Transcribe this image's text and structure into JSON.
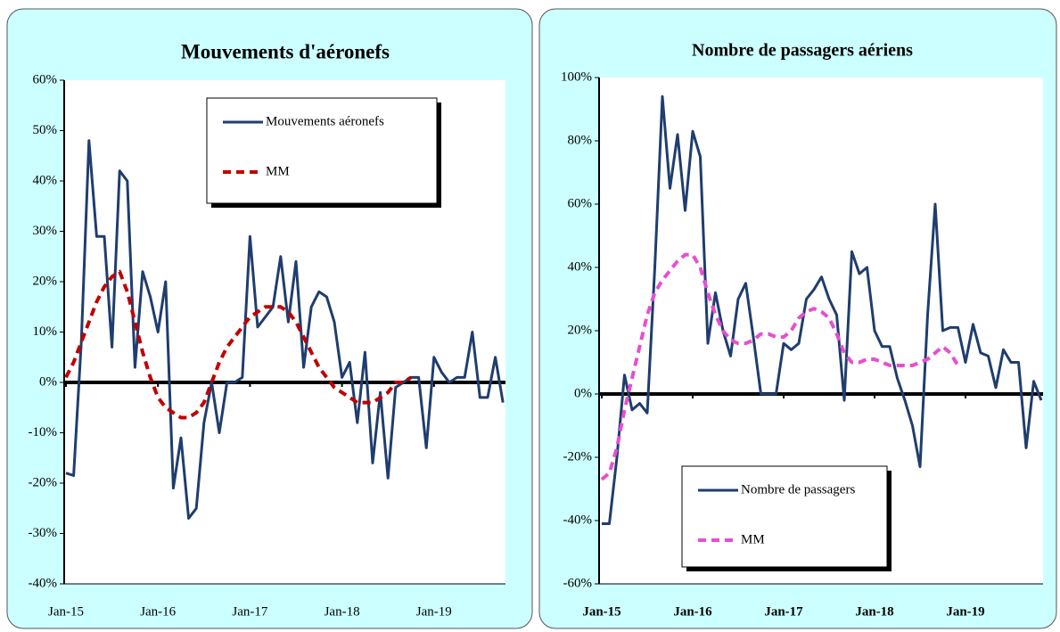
{
  "chart_data": [
    {
      "type": "line",
      "title": "Mouvements d'aéronefs",
      "categories": [
        "Jan-15",
        null,
        null,
        null,
        null,
        null,
        null,
        null,
        null,
        null,
        null,
        null,
        "Jan-16",
        null,
        null,
        null,
        null,
        null,
        null,
        null,
        null,
        null,
        null,
        null,
        "Jan-17",
        null,
        null,
        null,
        null,
        null,
        null,
        null,
        null,
        null,
        null,
        null,
        "Jan-18",
        null,
        null,
        null,
        null,
        null,
        null,
        null,
        null,
        null,
        null,
        null,
        "Jan-19",
        null,
        null,
        null,
        null,
        null,
        null,
        null,
        null,
        null
      ],
      "series": [
        {
          "name": "Mouvements  aéronefs",
          "color": "#1f3d6e",
          "style": "solid",
          "values": [
            -18,
            -18.5,
            8,
            48,
            29,
            29,
            7,
            42,
            40,
            3,
            22,
            17,
            10,
            20,
            -21,
            -11,
            -27,
            -25,
            -8,
            0,
            -10,
            0,
            0,
            1,
            29,
            11,
            13,
            15,
            25,
            12,
            24,
            3,
            15,
            18,
            17,
            12,
            1,
            4,
            -8,
            6,
            -16,
            -2,
            -19,
            -1,
            0,
            1,
            1,
            -13,
            5,
            2,
            0,
            1,
            1,
            10,
            -3,
            -3,
            5,
            -4
          ]
        },
        {
          "name": "MM",
          "color": "#c00000",
          "style": "dashed",
          "values": [
            1,
            4,
            8,
            12,
            16,
            19,
            21,
            22,
            18,
            12,
            6,
            1,
            -3,
            -5,
            -6,
            -7,
            -7,
            -6,
            -4,
            0,
            4,
            7,
            9,
            11,
            13,
            14,
            15,
            15,
            15,
            14,
            12,
            9,
            6,
            3,
            1,
            -1,
            -2,
            -3,
            -4,
            -4,
            -4,
            -3,
            -2,
            0,
            0,
            1,
            null,
            null,
            null,
            null,
            null,
            null,
            null,
            null,
            null,
            null,
            null,
            null
          ]
        }
      ],
      "ylim": [
        -40,
        60
      ],
      "yticks": [
        {
          "value": -40,
          "label": "-40%"
        },
        {
          "value": -30,
          "label": "-30%"
        },
        {
          "value": -20,
          "label": "-20%"
        },
        {
          "value": -10,
          "label": "-10%"
        },
        {
          "value": 0,
          "label": "0%"
        },
        {
          "value": 10,
          "label": "10%"
        },
        {
          "value": 20,
          "label": "20%"
        },
        {
          "value": 30,
          "label": "30%"
        },
        {
          "value": 40,
          "label": "40%"
        },
        {
          "value": 50,
          "label": "50%"
        },
        {
          "value": 60,
          "label": "60%"
        }
      ],
      "legend": "upper right"
    },
    {
      "type": "line",
      "title": "Nombre de passagers aériens",
      "categories": [
        "Jan-15",
        null,
        null,
        null,
        null,
        null,
        null,
        null,
        null,
        null,
        null,
        null,
        "Jan-16",
        null,
        null,
        null,
        null,
        null,
        null,
        null,
        null,
        null,
        null,
        null,
        "Jan-17",
        null,
        null,
        null,
        null,
        null,
        null,
        null,
        null,
        null,
        null,
        null,
        "Jan-18",
        null,
        null,
        null,
        null,
        null,
        null,
        null,
        null,
        null,
        null,
        null,
        "Jan-19",
        null,
        null,
        null,
        null,
        null,
        null,
        null,
        null,
        null,
        null
      ],
      "series": [
        {
          "name": "Nombre de passagers",
          "color": "#1f3d6e",
          "style": "solid",
          "values": [
            -41,
            -41,
            -20,
            6,
            -5,
            -3,
            -6,
            40,
            94,
            65,
            82,
            58,
            83,
            75,
            16,
            32,
            20,
            12,
            30,
            35,
            18,
            0,
            0,
            0,
            16,
            14,
            16,
            30,
            33,
            37,
            30,
            25,
            -2,
            45,
            38,
            40,
            20,
            15,
            15,
            5,
            -2,
            -10,
            -23,
            25,
            60,
            20,
            21,
            21,
            10,
            22,
            13,
            12,
            2,
            14,
            10,
            10,
            -17,
            4,
            -2
          ]
        },
        {
          "name": "MM",
          "color": "#e64fd0",
          "style": "dashed",
          "values": [
            -27,
            -25,
            -17,
            -5,
            5,
            15,
            25,
            32,
            36,
            39,
            42,
            44,
            44,
            40,
            32,
            25,
            20,
            17,
            16,
            16,
            17,
            19,
            19,
            18,
            18,
            20,
            24,
            26,
            27,
            26,
            24,
            19,
            13,
            10,
            10,
            11,
            11,
            10,
            9,
            9,
            9,
            9,
            10,
            11,
            13,
            15,
            13,
            9,
            null,
            null,
            null,
            null,
            null,
            null,
            null,
            null,
            null,
            null,
            null
          ]
        }
      ],
      "ylim": [
        -60,
        100
      ],
      "yticks": [
        {
          "value": -60,
          "label": "-60%"
        },
        {
          "value": -40,
          "label": "-40%"
        },
        {
          "value": -20,
          "label": "-20%"
        },
        {
          "value": 0,
          "label": "0%"
        },
        {
          "value": 20,
          "label": "20%"
        },
        {
          "value": 40,
          "label": "40%"
        },
        {
          "value": 60,
          "label": "60%"
        },
        {
          "value": 80,
          "label": "80%"
        },
        {
          "value": 100,
          "label": "100%"
        }
      ],
      "legend": "lower left"
    }
  ]
}
